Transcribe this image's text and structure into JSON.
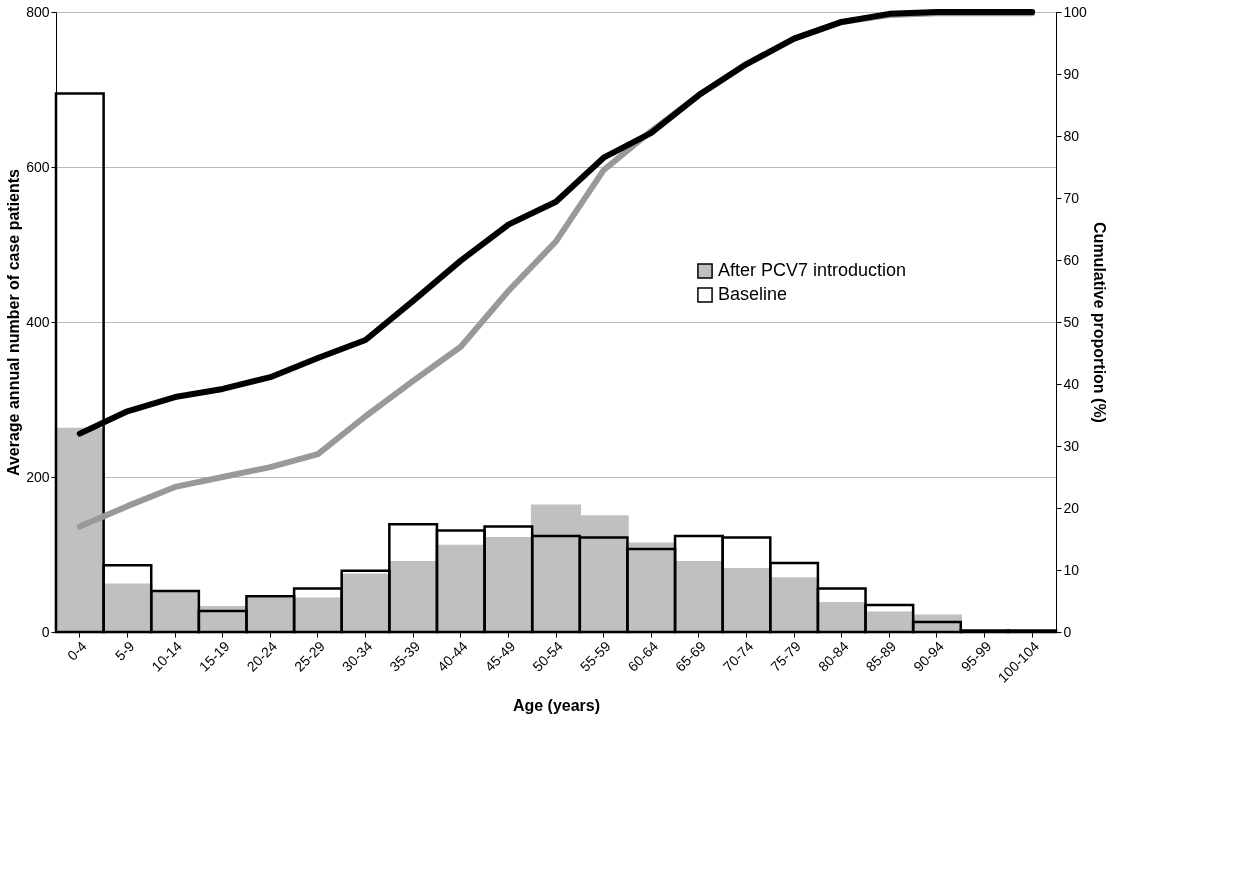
{
  "chart_data": {
    "type": "bar",
    "xlabel": "Age (years)",
    "ylabel": "Average annual number of case patients",
    "y2label": "Cumulative proportion (%)",
    "categories": [
      "0-4",
      "5-9",
      "10-14",
      "15-19",
      "20-24",
      "25-29",
      "30-34",
      "35-39",
      "40-44",
      "45-49",
      "50-54",
      "55-59",
      "60-64",
      "65-69",
      "70-74",
      "75-79",
      "80-84",
      "85-89",
      "90-94",
      "95-99",
      "100-104"
    ],
    "series": [
      {
        "name": "After PCV7 introduction",
        "type": "bar",
        "color": "#c0c0c0",
        "values": [
          262,
          61,
          51,
          32,
          43,
          43,
          74,
          90,
          111,
          121,
          163,
          149,
          114,
          90,
          81,
          69,
          37,
          25,
          21,
          0,
          0
        ]
      },
      {
        "name": "Baseline",
        "type": "bar",
        "color": "#000000",
        "values": [
          695,
          86,
          53,
          27,
          46,
          56,
          79,
          139,
          131,
          136,
          124,
          122,
          107,
          124,
          122,
          89,
          56,
          35,
          13,
          2,
          2
        ]
      },
      {
        "type": "line",
        "axis": "y2",
        "color": "#999999",
        "values": [
          17,
          20.3,
          23.4,
          25,
          26.6,
          28.7,
          34.8,
          40.5,
          46,
          55,
          63,
          74.5,
          80.8,
          86.6,
          91.6,
          95.7,
          98.4,
          99.5,
          99.8,
          99.8,
          99.8
        ]
      },
      {
        "type": "line",
        "axis": "y2",
        "color": "#000000",
        "values": [
          32,
          35.6,
          37.9,
          39.2,
          41.1,
          44.2,
          47.1,
          53.4,
          59.9,
          65.7,
          69.4,
          76.5,
          80.5,
          86.6,
          91.6,
          95.7,
          98.4,
          99.7,
          100,
          100,
          100
        ]
      }
    ],
    "ylim": [
      0,
      800
    ],
    "yticks": [
      0,
      200,
      400,
      600,
      800
    ],
    "y2lim": [
      0,
      100
    ],
    "y2ticks": [
      0,
      10,
      20,
      30,
      40,
      50,
      60,
      70,
      80,
      90,
      100
    ],
    "grid": "y",
    "legend": "right",
    "line_style": "solid",
    "marker": "none"
  }
}
